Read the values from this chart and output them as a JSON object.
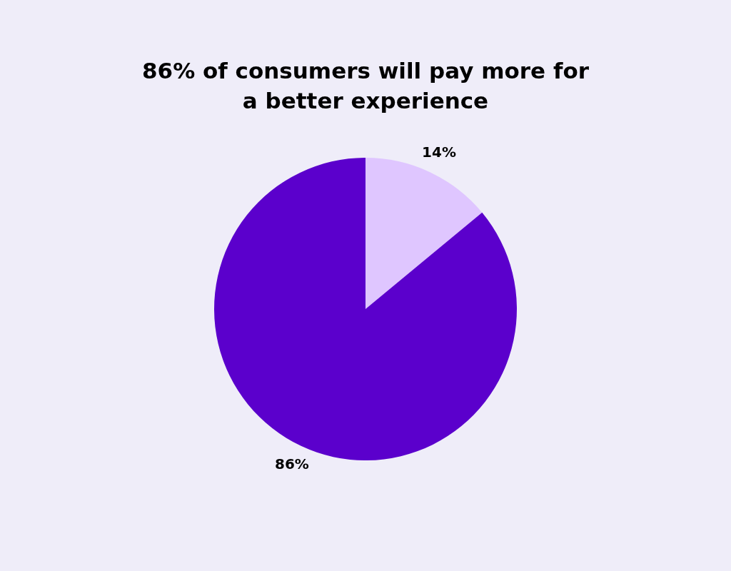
{
  "chart_data": {
    "type": "pie",
    "title": "86% of consumers will pay more for a better experience",
    "categories": [
      null,
      null
    ],
    "values": [
      14,
      86
    ],
    "colors": [
      "#dfc6ff",
      "#5b00cc"
    ],
    "value_labels": [
      "14%",
      "86%"
    ]
  }
}
